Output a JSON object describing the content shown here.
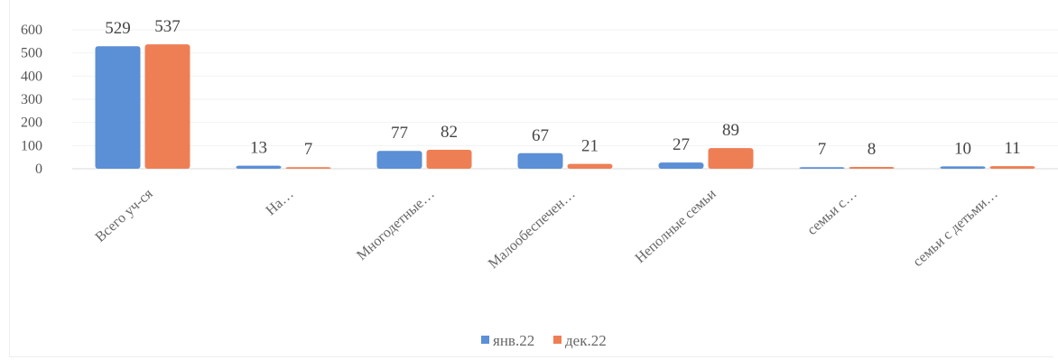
{
  "chart_data": {
    "type": "bar",
    "title": "",
    "xlabel": "",
    "ylabel": "",
    "ylim": [
      0,
      600
    ],
    "yticks": [
      0,
      100,
      200,
      300,
      400,
      500,
      600
    ],
    "grid": true,
    "legend_position": "bottom",
    "categories": [
      "Всего уч-ся",
      "На…",
      "Многодетные…",
      "Малообеспечен…",
      "Неполные семьи",
      "семьи с…",
      "семьи с детьми…"
    ],
    "series": [
      {
        "name": "янв.22",
        "color": "#5b8fd6",
        "values": [
          529,
          13,
          77,
          67,
          27,
          7,
          10
        ]
      },
      {
        "name": "дек.22",
        "color": "#ee7f55",
        "values": [
          537,
          7,
          82,
          21,
          89,
          8,
          11
        ]
      }
    ]
  }
}
